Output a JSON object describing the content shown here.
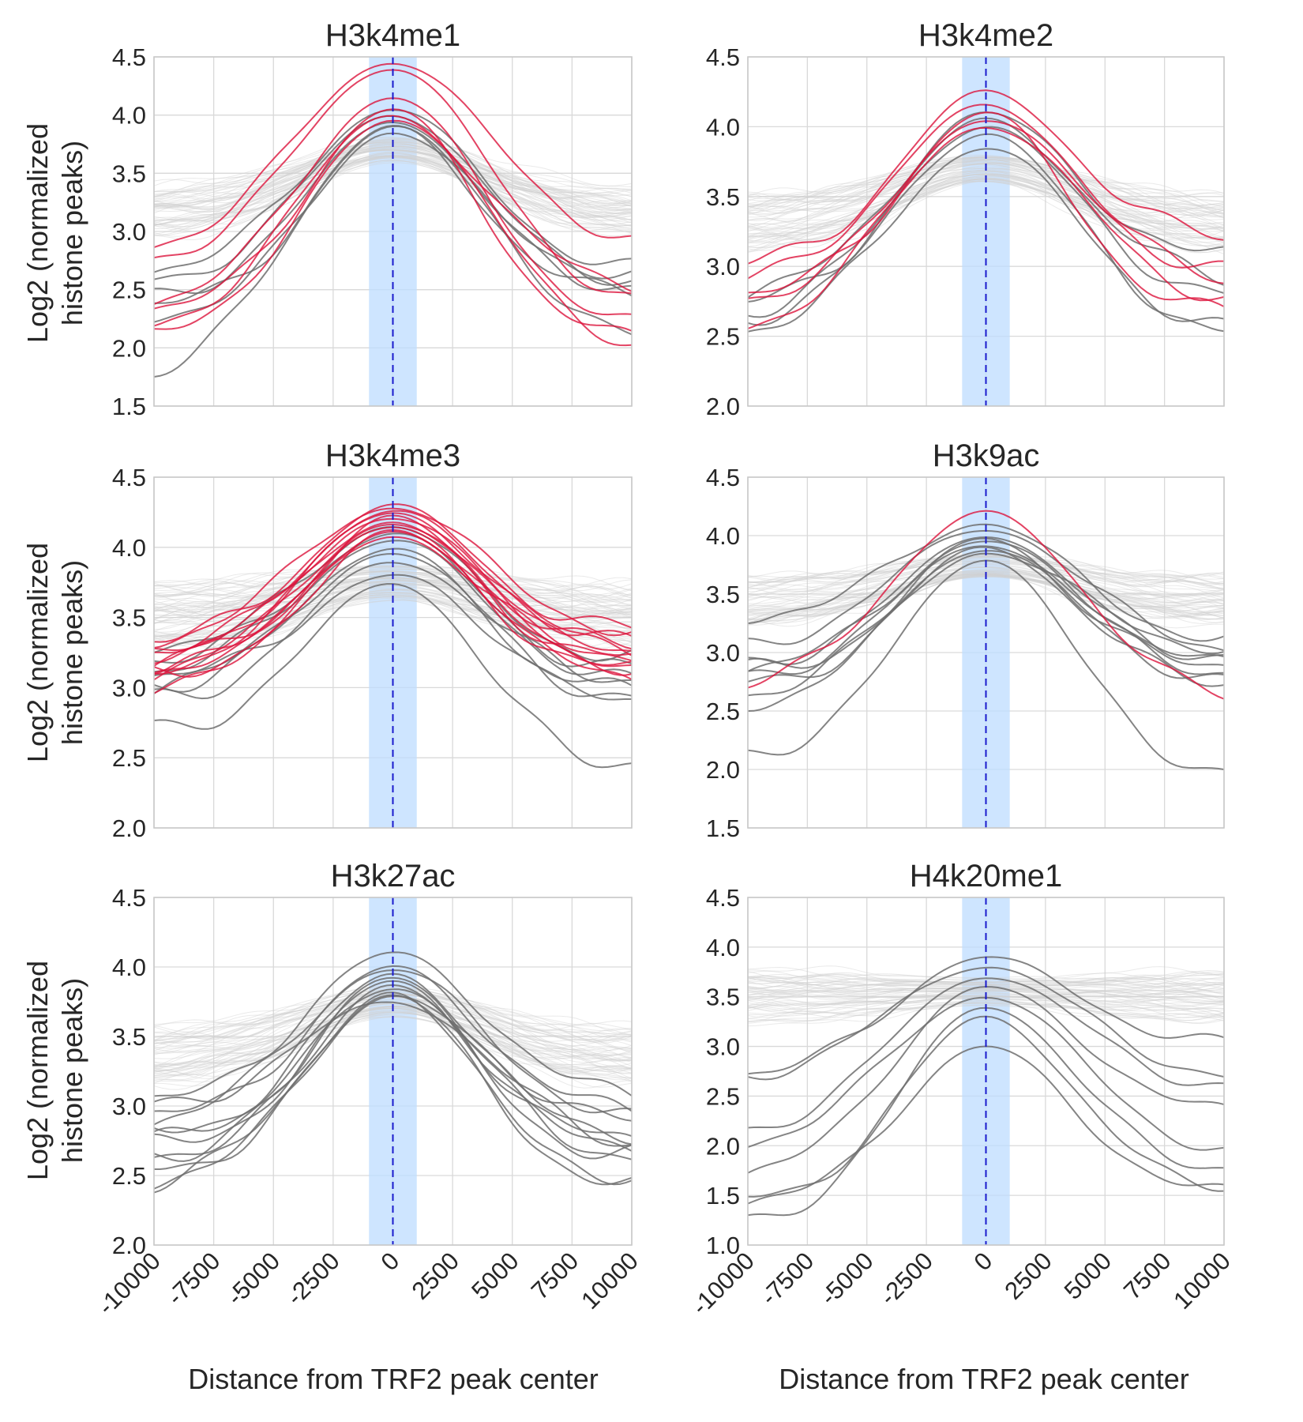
{
  "figure": {
    "shared_ylabel_lines": [
      "Log2 (normalized",
      "histone peaks)"
    ],
    "shared_xlabel": "Distance from TRF2 peak center"
  },
  "colors": {
    "background_lines": "#d0d0d0",
    "gray_lines": "#6e6e6e",
    "red_lines": "#dc143c",
    "highlight_band": "#bddcff",
    "center_line": "#1a1acc",
    "grid": "#d9d9d9"
  },
  "chart_data": [
    {
      "type": "line",
      "title": "H3k4me1",
      "xlabel": "Distance from TRF2 peak center",
      "ylabel": "Log2 (normalized histone peaks)",
      "xlim": [
        -10000,
        10000
      ],
      "ylim": [
        1.5,
        4.5
      ],
      "x_ticks": [
        -10000,
        -7500,
        -5000,
        -2500,
        0,
        2500,
        5000,
        7500,
        10000
      ],
      "x_tick_labels": [
        "-10000",
        "-7500",
        "-5000",
        "-2500",
        "0",
        "2500",
        "5000",
        "7500",
        "10000"
      ],
      "y_ticks": [
        1.5,
        2.0,
        2.5,
        3.0,
        3.5,
        4.0,
        4.5
      ],
      "y_tick_labels": [
        "1.5",
        "2.0",
        "2.5",
        "3.0",
        "3.5",
        "4.0",
        "4.5"
      ],
      "grid": true,
      "highlight_x_range": [
        -1000,
        1000
      ],
      "center_x": 0,
      "background_band": {
        "center_peak": 3.7,
        "edge": 3.15,
        "spread": 0.22,
        "count": 60
      },
      "red_lines": [
        {
          "peak": 4.45,
          "left": 2.8,
          "right": 2.85
        },
        {
          "peak": 4.4,
          "left": 2.7,
          "right": 2.35
        },
        {
          "peak": 4.15,
          "left": 2.35,
          "right": 2.15
        },
        {
          "peak": 4.05,
          "left": 2.3,
          "right": 2.05
        },
        {
          "peak": 4.0,
          "left": 2.1,
          "right": 1.95
        },
        {
          "peak": 3.95,
          "left": 2.05,
          "right": 2.5
        }
      ],
      "gray_lines": [
        {
          "peak": 4.05,
          "left": 2.65,
          "right": 2.65
        },
        {
          "peak": 4.0,
          "left": 2.55,
          "right": 2.55
        },
        {
          "peak": 3.95,
          "left": 2.45,
          "right": 2.5
        },
        {
          "peak": 3.9,
          "left": 2.35,
          "right": 2.45
        },
        {
          "peak": 3.85,
          "left": 2.25,
          "right": 2.6
        },
        {
          "peak": 3.9,
          "left": 1.7,
          "right": 2.0
        }
      ]
    },
    {
      "type": "line",
      "title": "H3k4me2",
      "xlabel": "Distance from TRF2 peak center",
      "ylabel": "Log2 (normalized histone peaks)",
      "xlim": [
        -10000,
        10000
      ],
      "ylim": [
        2.0,
        4.5
      ],
      "x_ticks": [
        -10000,
        -7500,
        -5000,
        -2500,
        0,
        2500,
        5000,
        7500,
        10000
      ],
      "x_tick_labels": [
        "-10000",
        "-7500",
        "-5000",
        "-2500",
        "0",
        "2500",
        "5000",
        "7500",
        "10000"
      ],
      "y_ticks": [
        2.0,
        2.5,
        3.0,
        3.5,
        4.0,
        4.5
      ],
      "y_tick_labels": [
        "2.0",
        "2.5",
        "3.0",
        "3.5",
        "4.0",
        "4.5"
      ],
      "grid": true,
      "highlight_x_range": [
        -1000,
        1000
      ],
      "center_x": 0,
      "background_band": {
        "center_peak": 3.7,
        "edge": 3.3,
        "spread": 0.2,
        "count": 60
      },
      "red_lines": [
        {
          "peak": 4.25,
          "left": 3.0,
          "right": 3.2
        },
        {
          "peak": 4.15,
          "left": 2.85,
          "right": 2.85
        },
        {
          "peak": 4.1,
          "left": 2.8,
          "right": 2.65
        },
        {
          "peak": 4.05,
          "left": 2.75,
          "right": 2.95
        },
        {
          "peak": 4.0,
          "left": 2.5,
          "right": 2.7
        }
      ],
      "gray_lines": [
        {
          "peak": 4.1,
          "left": 2.8,
          "right": 3.05
        },
        {
          "peak": 4.05,
          "left": 2.7,
          "right": 2.9
        },
        {
          "peak": 4.0,
          "left": 2.65,
          "right": 2.75
        },
        {
          "peak": 3.95,
          "left": 2.6,
          "right": 2.5
        },
        {
          "peak": 3.85,
          "left": 2.5,
          "right": 2.5
        }
      ]
    },
    {
      "type": "line",
      "title": "H3k4me3",
      "xlabel": "Distance from TRF2 peak center",
      "ylabel": "Log2 (normalized histone peaks)",
      "xlim": [
        -10000,
        10000
      ],
      "ylim": [
        2.0,
        4.5
      ],
      "x_ticks": [
        -10000,
        -7500,
        -5000,
        -2500,
        0,
        2500,
        5000,
        7500,
        10000
      ],
      "x_tick_labels": [
        "-10000",
        "-7500",
        "-5000",
        "-2500",
        "0",
        "2500",
        "5000",
        "7500",
        "10000"
      ],
      "y_ticks": [
        2.0,
        2.5,
        3.0,
        3.5,
        4.0,
        4.5
      ],
      "y_tick_labels": [
        "2.0",
        "2.5",
        "3.0",
        "3.5",
        "4.0",
        "4.5"
      ],
      "grid": true,
      "highlight_x_range": [
        -1000,
        1000
      ],
      "center_x": 0,
      "background_band": {
        "center_peak": 3.75,
        "edge": 3.5,
        "spread": 0.25,
        "count": 70
      },
      "red_lines": [
        {
          "peak": 4.3,
          "left": 3.35,
          "right": 3.4
        },
        {
          "peak": 4.28,
          "left": 3.3,
          "right": 3.35
        },
        {
          "peak": 4.26,
          "left": 3.25,
          "right": 3.3
        },
        {
          "peak": 4.24,
          "left": 3.2,
          "right": 3.25
        },
        {
          "peak": 4.22,
          "left": 3.15,
          "right": 3.2
        },
        {
          "peak": 4.2,
          "left": 3.12,
          "right": 3.15
        },
        {
          "peak": 4.18,
          "left": 3.1,
          "right": 3.1
        },
        {
          "peak": 4.16,
          "left": 3.05,
          "right": 3.05
        },
        {
          "peak": 4.14,
          "left": 3.02,
          "right": 3.0
        },
        {
          "peak": 4.12,
          "left": 3.0,
          "right": 3.12
        },
        {
          "peak": 4.1,
          "left": 3.18,
          "right": 3.28
        },
        {
          "peak": 4.08,
          "left": 3.08,
          "right": 3.22
        }
      ],
      "gray_lines": [
        {
          "peak": 4.15,
          "left": 3.3,
          "right": 3.2
        },
        {
          "peak": 4.1,
          "left": 3.2,
          "right": 3.1
        },
        {
          "peak": 4.05,
          "left": 3.1,
          "right": 3.0
        },
        {
          "peak": 4.0,
          "left": 3.0,
          "right": 2.9
        },
        {
          "peak": 3.95,
          "left": 2.95,
          "right": 2.8
        },
        {
          "peak": 3.9,
          "left": 2.9,
          "right": 3.05
        },
        {
          "peak": 3.8,
          "left": 3.05,
          "right": 2.95
        },
        {
          "peak": 3.75,
          "left": 2.7,
          "right": 2.45
        }
      ]
    },
    {
      "type": "line",
      "title": "H3k9ac",
      "xlabel": "Distance from TRF2 peak center",
      "ylabel": "Log2 (normalized histone peaks)",
      "xlim": [
        -10000,
        10000
      ],
      "ylim": [
        1.5,
        4.5
      ],
      "x_ticks": [
        -10000,
        -7500,
        -5000,
        -2500,
        0,
        2500,
        5000,
        7500,
        10000
      ],
      "x_tick_labels": [
        "-10000",
        "-7500",
        "-5000",
        "-2500",
        "0",
        "2500",
        "5000",
        "7500",
        "10000"
      ],
      "y_ticks": [
        1.5,
        2.0,
        2.5,
        3.0,
        3.5,
        4.0,
        4.5
      ],
      "y_tick_labels": [
        "1.5",
        "2.0",
        "2.5",
        "3.0",
        "3.5",
        "4.0",
        "4.5"
      ],
      "grid": true,
      "highlight_x_range": [
        -1000,
        1000
      ],
      "center_x": 0,
      "background_band": {
        "center_peak": 3.75,
        "edge": 3.45,
        "spread": 0.2,
        "count": 60
      },
      "red_lines": [
        {
          "peak": 4.2,
          "left": 2.65,
          "right": 2.55
        }
      ],
      "gray_lines": [
        {
          "peak": 4.1,
          "left": 3.3,
          "right": 3.1
        },
        {
          "peak": 4.05,
          "left": 3.0,
          "right": 3.0
        },
        {
          "peak": 4.0,
          "left": 2.9,
          "right": 2.95
        },
        {
          "peak": 3.98,
          "left": 2.85,
          "right": 2.9
        },
        {
          "peak": 3.95,
          "left": 2.8,
          "right": 2.85
        },
        {
          "peak": 3.92,
          "left": 2.75,
          "right": 2.8
        },
        {
          "peak": 3.9,
          "left": 2.7,
          "right": 2.75
        },
        {
          "peak": 3.88,
          "left": 2.6,
          "right": 2.7
        },
        {
          "peak": 3.85,
          "left": 2.5,
          "right": 3.0
        },
        {
          "peak": 3.8,
          "left": 2.1,
          "right": 1.95
        }
      ]
    },
    {
      "type": "line",
      "title": "H3k27ac",
      "xlabel": "Distance from TRF2 peak center",
      "ylabel": "Log2 (normalized histone peaks)",
      "xlim": [
        -10000,
        10000
      ],
      "ylim": [
        2.0,
        4.5
      ],
      "x_ticks": [
        -10000,
        -7500,
        -5000,
        -2500,
        0,
        2500,
        5000,
        7500,
        10000
      ],
      "x_tick_labels": [
        "-10000",
        "-7500",
        "-5000",
        "-2500",
        "0",
        "2500",
        "5000",
        "7500",
        "10000"
      ],
      "y_ticks": [
        2.0,
        2.5,
        3.0,
        3.5,
        4.0,
        4.5
      ],
      "y_tick_labels": [
        "2.0",
        "2.5",
        "3.0",
        "3.5",
        "4.0",
        "4.5"
      ],
      "grid": true,
      "highlight_x_range": [
        -1000,
        1000
      ],
      "center_x": 0,
      "background_band": {
        "center_peak": 3.75,
        "edge": 3.35,
        "spread": 0.22,
        "count": 60
      },
      "red_lines": [],
      "gray_lines": [
        {
          "peak": 4.1,
          "left": 3.0,
          "right": 3.05
        },
        {
          "peak": 4.0,
          "left": 2.9,
          "right": 2.95
        },
        {
          "peak": 3.98,
          "left": 2.85,
          "right": 2.85
        },
        {
          "peak": 3.95,
          "left": 2.8,
          "right": 2.8
        },
        {
          "peak": 3.92,
          "left": 2.75,
          "right": 2.75
        },
        {
          "peak": 3.9,
          "left": 2.7,
          "right": 2.7
        },
        {
          "peak": 3.88,
          "left": 2.65,
          "right": 2.65
        },
        {
          "peak": 3.85,
          "left": 2.6,
          "right": 2.6
        },
        {
          "peak": 3.82,
          "left": 2.55,
          "right": 2.5
        },
        {
          "peak": 3.8,
          "left": 2.45,
          "right": 2.4
        },
        {
          "peak": 3.78,
          "left": 2.4,
          "right": 2.85
        },
        {
          "peak": 3.75,
          "left": 2.95,
          "right": 2.7
        }
      ]
    },
    {
      "type": "line",
      "title": "H4k20me1",
      "xlabel": "Distance from TRF2 peak center",
      "ylabel": "Log2 (normalized histone peaks)",
      "xlim": [
        -10000,
        10000
      ],
      "ylim": [
        1.0,
        4.5
      ],
      "x_ticks": [
        -10000,
        -7500,
        -5000,
        -2500,
        0,
        2500,
        5000,
        7500,
        10000
      ],
      "x_tick_labels": [
        "-10000",
        "-7500",
        "-5000",
        "-2500",
        "0",
        "2500",
        "5000",
        "7500",
        "10000"
      ],
      "y_ticks": [
        1.0,
        1.5,
        2.0,
        2.5,
        3.0,
        3.5,
        4.0,
        4.5
      ],
      "y_tick_labels": [
        "1.0",
        "1.5",
        "2.0",
        "2.5",
        "3.0",
        "3.5",
        "4.0",
        "4.5"
      ],
      "grid": true,
      "highlight_x_range": [
        -1000,
        1000
      ],
      "center_x": 0,
      "background_band": {
        "center_peak": 3.55,
        "edge": 3.5,
        "spread": 0.28,
        "count": 60
      },
      "red_lines": [],
      "gray_lines": [
        {
          "peak": 3.9,
          "left": 2.7,
          "right": 3.0
        },
        {
          "peak": 3.8,
          "left": 2.65,
          "right": 2.65
        },
        {
          "peak": 3.7,
          "left": 2.1,
          "right": 2.55
        },
        {
          "peak": 3.6,
          "left": 1.65,
          "right": 2.3
        },
        {
          "peak": 3.5,
          "left": 1.95,
          "right": 1.85
        },
        {
          "peak": 3.4,
          "left": 1.2,
          "right": 1.75
        },
        {
          "peak": 3.3,
          "left": 1.45,
          "right": 1.6
        },
        {
          "peak": 3.0,
          "left": 1.4,
          "right": 1.5
        }
      ]
    }
  ]
}
